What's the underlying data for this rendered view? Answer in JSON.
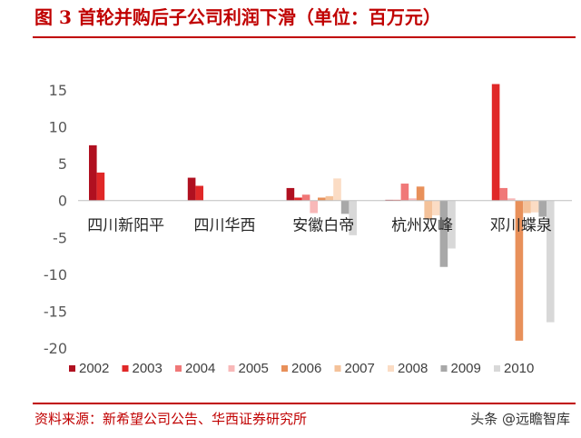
{
  "header": {
    "title": "图 3  首轮并购后子公司利润下滑（单位：百万元）"
  },
  "footer": {
    "source": "资料来源：新希望公司公告、华西证券研究所",
    "watermark": "头条 @远瞻智库"
  },
  "chart_data": {
    "type": "bar",
    "title": "图 3  首轮并购后子公司利润下滑（单位：百万元）",
    "ylabel": "",
    "xlabel": "",
    "ylim": [
      -20,
      15
    ],
    "yticks": [
      15,
      10,
      5,
      0,
      -5,
      -10,
      -15,
      -20
    ],
    "grid": false,
    "legend_position": "bottom",
    "categories": [
      "四川新阳平",
      "四川华西",
      "安徽白帝",
      "杭州双峰",
      "邓川蝶泉"
    ],
    "series": [
      {
        "name": "2002",
        "color": "#b01020",
        "values": [
          7.5,
          3.1,
          1.7,
          0.1,
          0
        ]
      },
      {
        "name": "2003",
        "color": "#e02828",
        "values": [
          3.8,
          2.0,
          0.4,
          0.1,
          15.8
        ]
      },
      {
        "name": "2004",
        "color": "#f07878",
        "values": [
          0,
          0,
          0.8,
          2.3,
          1.7
        ]
      },
      {
        "name": "2005",
        "color": "#f8b8b8",
        "values": [
          0,
          0,
          -1.7,
          0.3,
          0.3
        ]
      },
      {
        "name": "2006",
        "color": "#e8905a",
        "values": [
          0,
          0,
          0.4,
          1.9,
          -19.0
        ]
      },
      {
        "name": "2007",
        "color": "#f4c29a",
        "values": [
          0,
          0,
          0.6,
          -2.5,
          -1.7
        ]
      },
      {
        "name": "2008",
        "color": "#fbdcc4",
        "values": [
          0,
          0,
          3.0,
          -2.0,
          -1.6
        ]
      },
      {
        "name": "2009",
        "color": "#a8a8a8",
        "values": [
          0,
          0,
          -1.8,
          -9.0,
          -2.2
        ]
      },
      {
        "name": "2010",
        "color": "#d8d8d8",
        "values": [
          0,
          0,
          -4.7,
          -6.5,
          -16.5
        ]
      }
    ]
  }
}
